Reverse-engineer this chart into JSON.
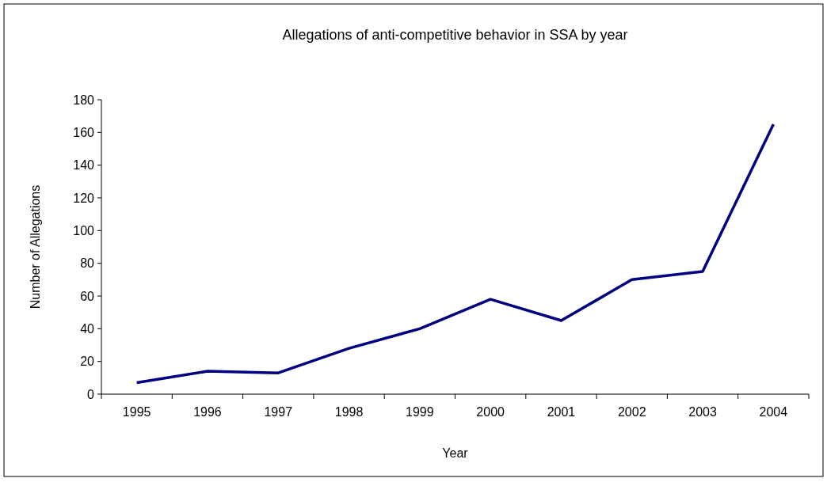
{
  "chart_data": {
    "type": "line",
    "title": "Allegations of anti-competitive behavior in SSA by year",
    "xlabel": "Year",
    "ylabel": "Number of Allegations",
    "categories": [
      "1995",
      "1996",
      "1997",
      "1998",
      "1999",
      "2000",
      "2001",
      "2002",
      "2003",
      "2004"
    ],
    "series": [
      {
        "color": "#000080",
        "values": [
          7,
          14,
          13,
          28,
          40,
          58,
          45,
          70,
          75,
          165
        ]
      }
    ],
    "ylim": [
      0,
      180
    ],
    "yticks": [
      0,
      20,
      40,
      60,
      80,
      100,
      120,
      140,
      160,
      180
    ],
    "grid": false,
    "marker": "none",
    "line_style": "solid"
  }
}
